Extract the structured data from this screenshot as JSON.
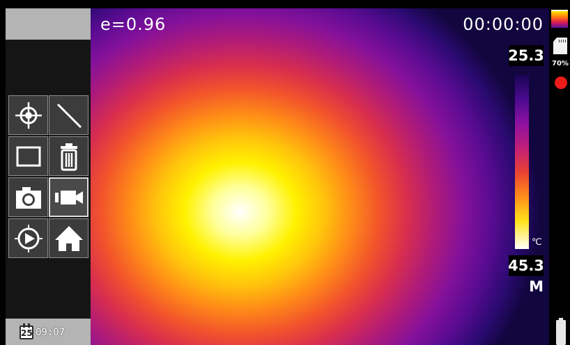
{
  "status": {
    "date_day": "25",
    "time": "09:07"
  },
  "toolbar": {
    "tools": [
      {
        "name": "spot-measure",
        "icon": "crosshair-icon"
      },
      {
        "name": "line-measure",
        "icon": "line-icon"
      },
      {
        "name": "area-measure",
        "icon": "rectangle-icon"
      },
      {
        "name": "delete",
        "icon": "trash-icon"
      },
      {
        "name": "capture-photo",
        "icon": "camera-icon"
      },
      {
        "name": "record-video",
        "icon": "video-camera-icon",
        "selected": true
      },
      {
        "name": "playback",
        "icon": "play-circle-icon"
      },
      {
        "name": "home",
        "icon": "home-icon"
      }
    ]
  },
  "thermal": {
    "emissivity": "e=0.96",
    "recording_time": "00:00:00",
    "temp_max": "25.3",
    "temp_min": "45.3",
    "unit": "℃",
    "mode": "M",
    "palette": "iron"
  },
  "system": {
    "storage_percent": "70%",
    "recording": true
  },
  "colors": {
    "panel_bg": "#151515",
    "panel_light": "#b4b4b4",
    "tool_bg": "#3c3c3c",
    "record_red": "#ee1b1b"
  }
}
